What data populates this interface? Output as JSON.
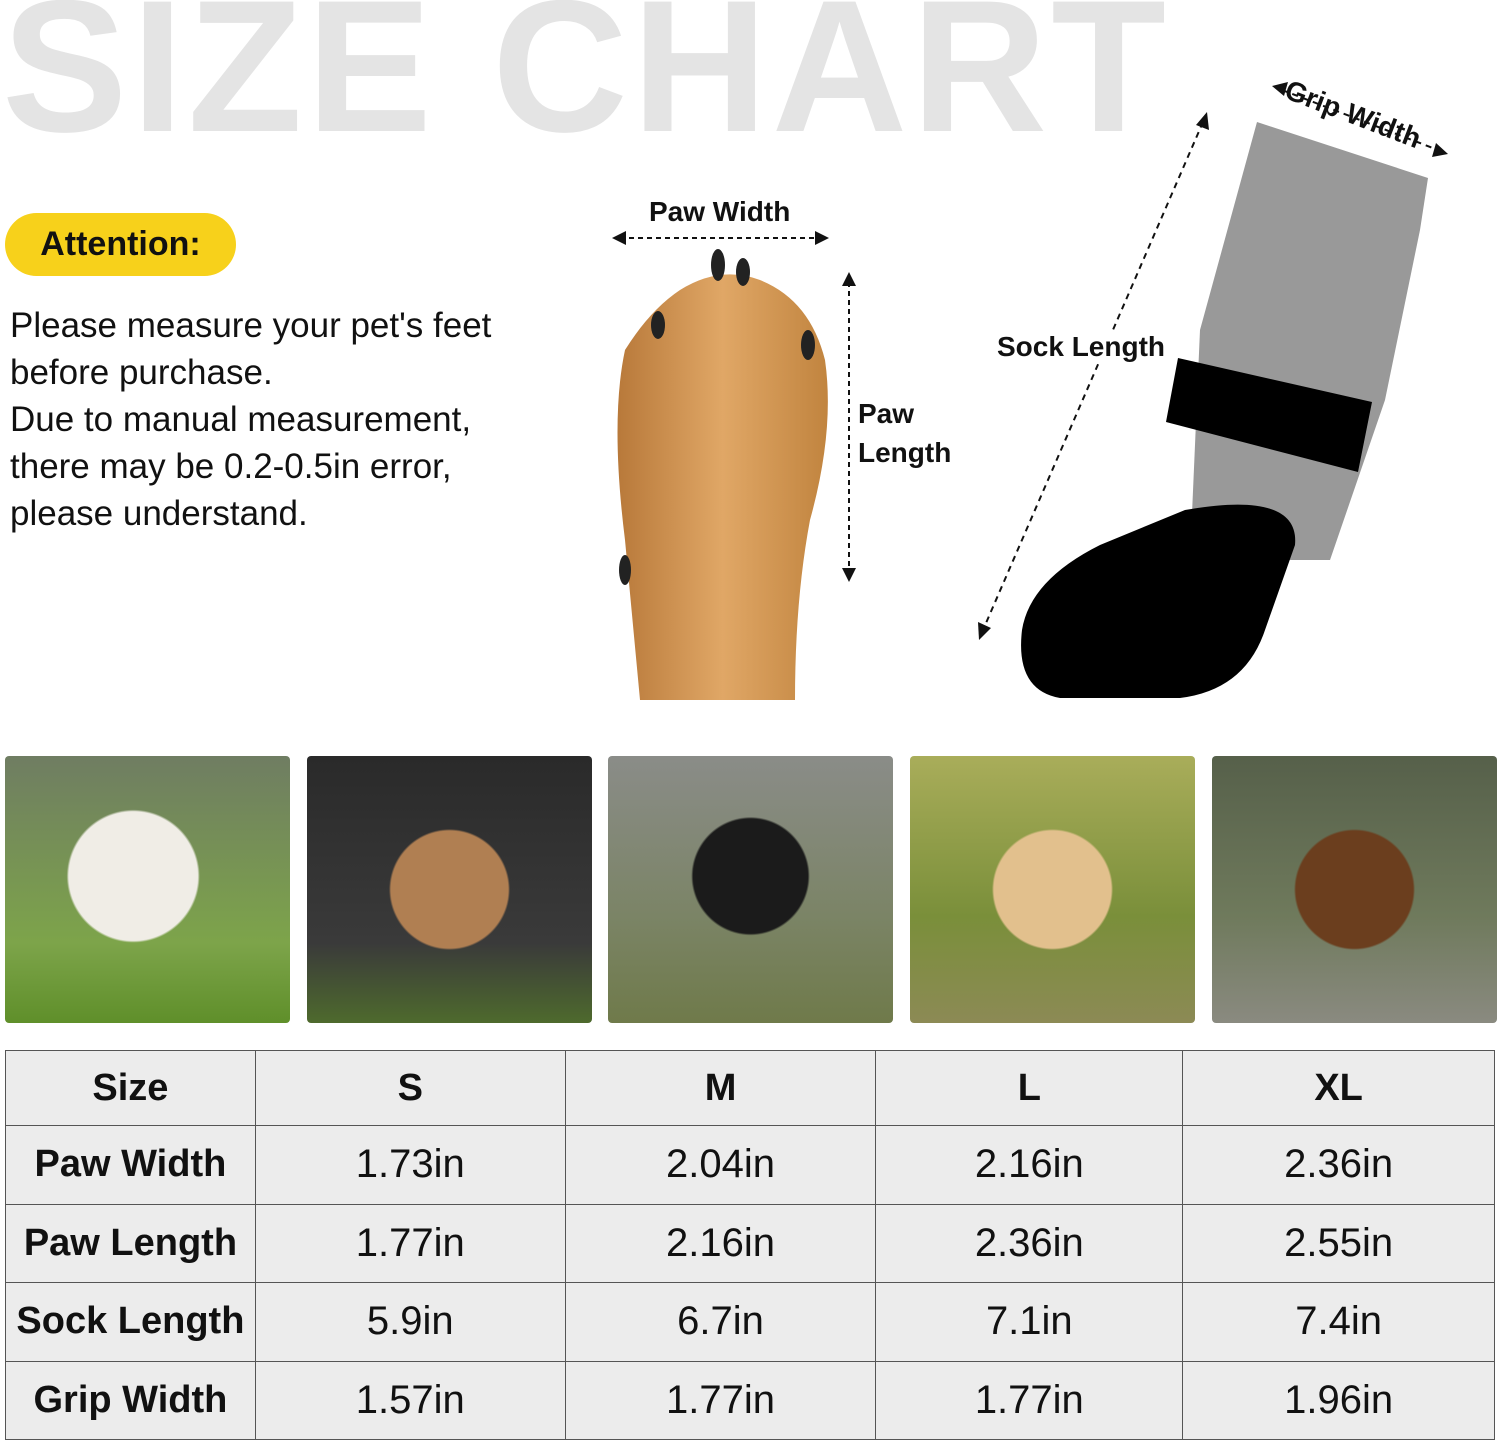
{
  "title": "SIZE CHART",
  "attention": {
    "label": "Attention:",
    "lines": [
      "Please measure your pet's feet",
      "before purchase.",
      "Due to manual measurement,",
      "there may be 0.2-0.5in error,",
      "please understand."
    ]
  },
  "diagram": {
    "paw_width": "Paw Width",
    "paw_length_1": "Paw",
    "paw_length_2": "Length",
    "sock_length": "Sock Length",
    "grip_width": "Grip Width"
  },
  "table": {
    "header": [
      "Size",
      "S",
      "M",
      "L",
      "XL"
    ],
    "rows": [
      [
        "Paw Width",
        "1.73in",
        "2.04in",
        "2.16in",
        "2.36in"
      ],
      [
        "Paw Length",
        "1.77in",
        "2.16in",
        "2.36in",
        "2.55in"
      ],
      [
        "Sock Length",
        "5.9in",
        "6.7in",
        "7.1in",
        "7.4in"
      ],
      [
        "Grip Width",
        "1.57in",
        "1.77in",
        "1.77in",
        "1.96in"
      ]
    ]
  },
  "colors": {
    "accent": "#f7d11b",
    "title": "#e4e4e4",
    "table_bg": "#ececec"
  }
}
